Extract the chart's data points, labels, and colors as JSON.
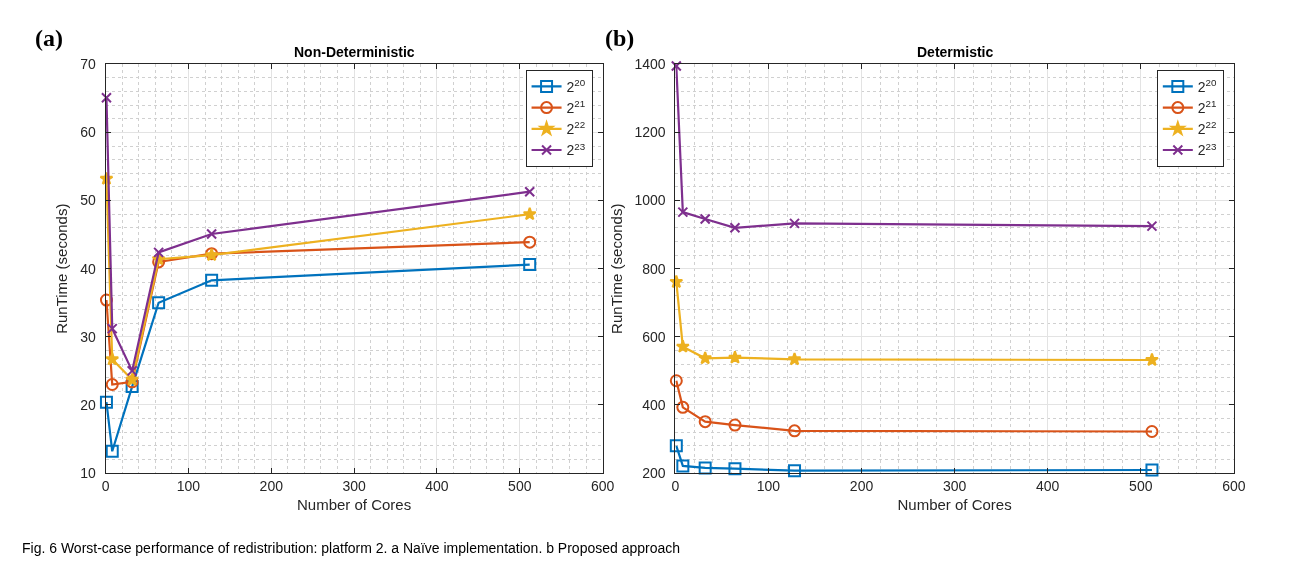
{
  "chart_data": [
    {
      "type": "line",
      "title": "Non-Deterministic",
      "xlabel": "Number of Cores",
      "ylabel": "RunTime (seconds)",
      "annotations": [
        "(a)",
        "Fig. 6 Worst-case performance of redistribution: platform 2. a Naïve implementation. b Proposed approach"
      ],
      "x": [
        1,
        8,
        32,
        64,
        128,
        512
      ],
      "series": [
        {
          "name": "2$^{20}$",
          "color": "#0072bd",
          "marker": "square",
          "values": [
            20.4,
            13.2,
            22.7,
            35.0,
            38.3,
            40.6
          ]
        },
        {
          "name": "2$^{21}$",
          "color": "#d95319",
          "marker": "circle",
          "values": [
            35.4,
            23.0,
            23.4,
            41.0,
            42.2,
            43.9
          ]
        },
        {
          "name": "2$^{22}$",
          "color": "#edb120",
          "marker": "star",
          "values": [
            53.2,
            26.7,
            23.7,
            41.4,
            42.0,
            48.0
          ]
        },
        {
          "name": "2$^{23}$",
          "color": "#7e2f8e",
          "marker": "cross",
          "values": [
            65.1,
            31.2,
            25.0,
            42.4,
            45.1,
            51.3
          ]
        }
      ],
      "xlim": [
        0,
        600
      ],
      "xticks": [
        0,
        100,
        200,
        300,
        400,
        500,
        600
      ],
      "ylim": [
        10,
        70
      ],
      "yticks": [
        10,
        20,
        30,
        40,
        50,
        60,
        70
      ],
      "grid": true,
      "legend": "top right",
      "line_style": "solid"
    },
    {
      "type": "line",
      "title": "Determistic",
      "xlabel": "Number of Cores",
      "ylabel": "RunTime (seconds)",
      "annotations": [
        "(b)"
      ],
      "x": [
        1,
        8,
        32,
        64,
        128,
        512
      ],
      "series": [
        {
          "name": "2$^{20}$",
          "color": "#0072bd",
          "marker": "square",
          "values": [
            280,
            221,
            215,
            213,
            207,
            209
          ]
        },
        {
          "name": "2$^{21}$",
          "color": "#d95319",
          "marker": "circle",
          "values": [
            471,
            393,
            351,
            341,
            324,
            322
          ]
        },
        {
          "name": "2$^{22}$",
          "color": "#edb120",
          "marker": "star",
          "values": [
            761,
            571,
            537,
            539,
            534,
            532
          ]
        },
        {
          "name": "2$^{23}$",
          "color": "#7e2f8e",
          "marker": "cross",
          "values": [
            1395,
            966,
            946,
            920,
            933,
            925
          ]
        }
      ],
      "xlim": [
        0,
        600
      ],
      "xticks": [
        0,
        100,
        200,
        300,
        400,
        500,
        600
      ],
      "ylim": [
        200,
        1400
      ],
      "yticks": [
        200,
        400,
        600,
        800,
        1000,
        1200,
        1400
      ],
      "grid": true,
      "legend": "top right",
      "line_style": "solid"
    }
  ]
}
